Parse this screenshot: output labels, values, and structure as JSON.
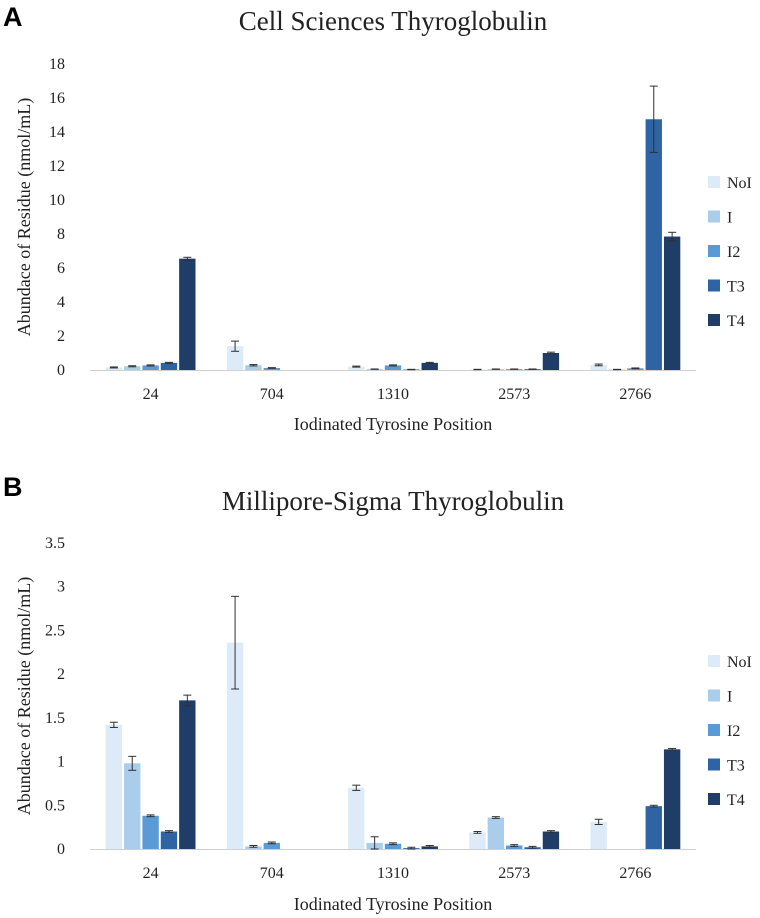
{
  "chart_data": [
    {
      "panel": "A",
      "type": "bar",
      "title": "Cell Sciences Thyroglobulin",
      "xlabel": "Iodinated Tyrosine Position",
      "ylabel": "Abundace of Residue (nmol/mL)",
      "categories": [
        "24",
        "704",
        "1310",
        "2573",
        "2766"
      ],
      "ylim": [
        0,
        18
      ],
      "yticks": [
        "0",
        "2",
        "4",
        "6",
        "8",
        "10",
        "12",
        "14",
        "16",
        "18"
      ],
      "series": [
        {
          "name": "NoI",
          "color": "#ddeaf7",
          "values": [
            0.15,
            1.4,
            0.2,
            0.03,
            0.3
          ],
          "errors": [
            0.03,
            0.3,
            0.03,
            0.01,
            0.05
          ]
        },
        {
          "name": "I",
          "color": "#a9cdea",
          "values": [
            0.22,
            0.28,
            0.05,
            0.05,
            0.03
          ],
          "errors": [
            0.03,
            0.04,
            0.01,
            0.01,
            0.01
          ]
        },
        {
          "name": "I2",
          "color": "#5b9bd5",
          "values": [
            0.27,
            0.12,
            0.27,
            0.05,
            0.1
          ],
          "errors": [
            0.03,
            0.02,
            0.03,
            0.01,
            0.02
          ]
        },
        {
          "name": "T3",
          "color": "#2e64a4",
          "values": [
            0.42,
            0.0,
            0.03,
            0.05,
            14.75
          ],
          "errors": [
            0.03,
            0.0,
            0.01,
            0.01,
            1.95
          ]
        },
        {
          "name": "T4",
          "color": "#1f3d66",
          "values": [
            6.55,
            0.0,
            0.42,
            1.0,
            7.85
          ],
          "errors": [
            0.08,
            0.0,
            0.03,
            0.05,
            0.25
          ]
        }
      ]
    },
    {
      "panel": "B",
      "type": "bar",
      "title": "Millipore-Sigma Thyroglobulin",
      "xlabel": "Iodinated Tyrosine Position",
      "ylabel": "Abundace of Residue (nmol/mL)",
      "categories": [
        "24",
        "704",
        "1310",
        "2573",
        "2766"
      ],
      "ylim": [
        0,
        3.5
      ],
      "yticks": [
        "0",
        "0.5",
        "1",
        "1.5",
        "2",
        "2.5",
        "3",
        "3.5"
      ],
      "series": [
        {
          "name": "NoI",
          "color": "#ddeaf7",
          "values": [
            1.42,
            2.36,
            0.7,
            0.19,
            0.31
          ],
          "errors": [
            0.03,
            0.53,
            0.03,
            0.01,
            0.03
          ]
        },
        {
          "name": "I",
          "color": "#a9cdea",
          "values": [
            0.98,
            0.03,
            0.07,
            0.36,
            0.0
          ],
          "errors": [
            0.08,
            0.01,
            0.07,
            0.01,
            0.0
          ]
        },
        {
          "name": "I2",
          "color": "#5b9bd5",
          "values": [
            0.38,
            0.07,
            0.06,
            0.04,
            0.0
          ],
          "errors": [
            0.01,
            0.01,
            0.01,
            0.01,
            0.0
          ]
        },
        {
          "name": "T3",
          "color": "#2e64a4",
          "values": [
            0.2,
            0.0,
            0.01,
            0.02,
            0.49
          ],
          "errors": [
            0.01,
            0.0,
            0.01,
            0.01,
            0.01
          ]
        },
        {
          "name": "T4",
          "color": "#1f3d66",
          "values": [
            1.7,
            0.0,
            0.03,
            0.2,
            1.14
          ],
          "errors": [
            0.06,
            0.0,
            0.01,
            0.01,
            0.01
          ]
        }
      ]
    }
  ]
}
